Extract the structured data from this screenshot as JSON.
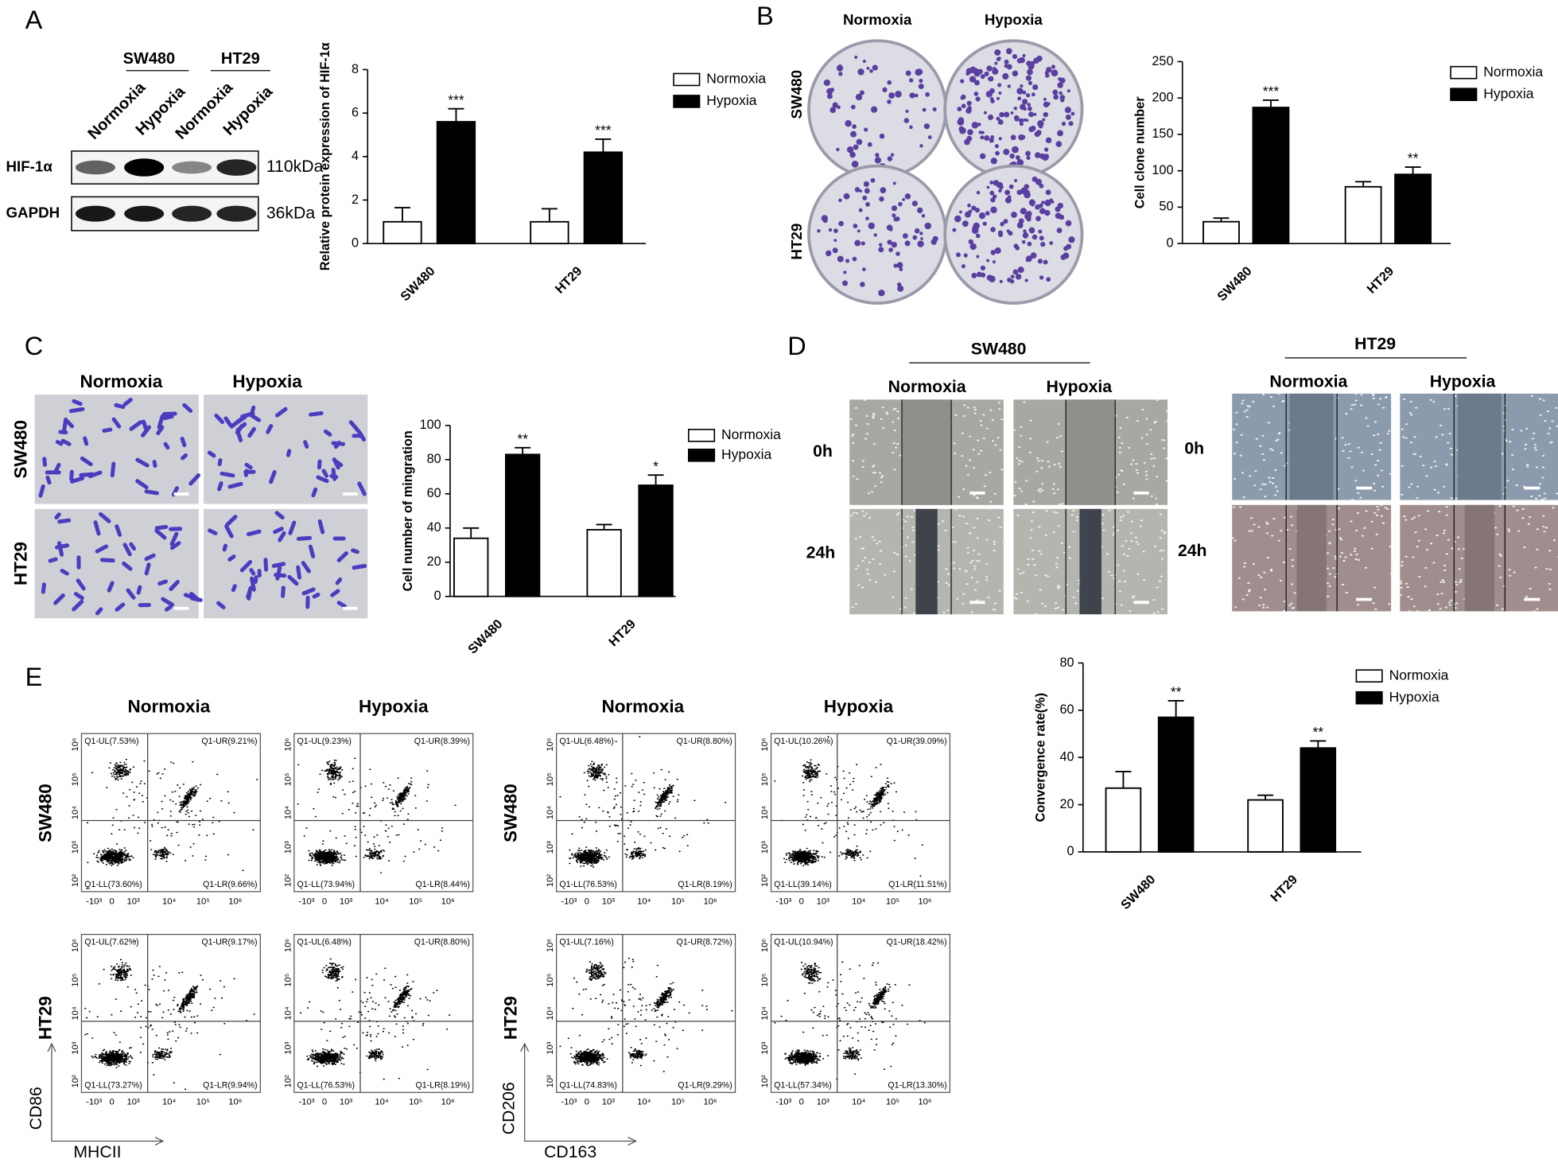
{
  "panel_labels": [
    "A",
    "B",
    "C",
    "D",
    "E"
  ],
  "blot": {
    "cell_lines": [
      "SW480",
      "HT29"
    ],
    "lanes": [
      "Normoxia",
      "Hypoxia",
      "Normoxia",
      "Hypoxia"
    ],
    "proteins": [
      "HIF-1α",
      "GAPDH"
    ],
    "sizes": [
      "110kDa",
      "36kDa"
    ]
  },
  "colony": {
    "columns": [
      "Normoxia",
      "Hypoxia"
    ],
    "rows": [
      "SW480",
      "HT29"
    ]
  },
  "transwell": {
    "columns": [
      "Normoxia",
      "Hypoxia"
    ],
    "rows": [
      "SW480",
      "HT29"
    ]
  },
  "wound": {
    "groups": [
      {
        "title": "SW480",
        "columns": [
          "Normoxia",
          "Hypoxia"
        ],
        "rows": [
          "0h",
          "24h"
        ]
      },
      {
        "title": "HT29",
        "columns": [
          "Normoxia",
          "Hypoxia"
        ],
        "rows": [
          "0h",
          "24h"
        ]
      }
    ]
  },
  "flow": {
    "columns": [
      "Normoxia",
      "Hypoxia",
      "Normoxia",
      "Hypoxia"
    ],
    "rows": [
      "SW480",
      "HT29"
    ],
    "axes": [
      {
        "y": "CD86",
        "x": "MHCII"
      },
      {
        "y": "CD206",
        "x": "CD163"
      }
    ],
    "xticks": [
      "-10³",
      "0",
      "10³",
      "10⁴",
      "10⁵",
      "10⁶"
    ],
    "yticks": [
      "10²",
      "10³",
      "10⁴",
      "10⁵",
      "10⁶"
    ],
    "plots": [
      {
        "UL": "Q1-UL(7.53%)",
        "UR": "Q1-UR(9.21%)",
        "LL": "Q1-LL(73.60%)",
        "LR": "Q1-LR(9.66%)"
      },
      {
        "UL": "Q1-UL(9.23%)",
        "UR": "Q1-UR(8.39%)",
        "LL": "Q1-LL(73.94%)",
        "LR": "Q1-LR(8.44%)"
      },
      {
        "UL": "Q1-UL(6.48%)",
        "UR": "Q1-UR(8.80%)",
        "LL": "Q1-LL(76.53%)",
        "LR": "Q1-LR(8.19%)"
      },
      {
        "UL": "Q1-UL(10.26%)",
        "UR": "Q1-UR(39.09%)",
        "LL": "Q1-LL(39.14%)",
        "LR": "Q1-LR(11.51%)"
      },
      {
        "UL": "Q1-UL(7.62%)",
        "UR": "Q1-UR(9.17%)",
        "LL": "Q1-LL(73.27%)",
        "LR": "Q1-LR(9.94%)"
      },
      {
        "UL": "Q1-UL(6.48%)",
        "UR": "Q1-UR(8.80%)",
        "LL": "Q1-LL(76.53%)",
        "LR": "Q1-LR(8.19%)"
      },
      {
        "UL": "Q1-UL(7.16%)",
        "UR": "Q1-UR(8.72%)",
        "LL": "Q1-LL(74.83%)",
        "LR": "Q1-LR(9.29%)"
      },
      {
        "UL": "Q1-UL(10.94%)",
        "UR": "Q1-UR(18.42%)",
        "LL": "Q1-LL(57.34%)",
        "LR": "Q1-LR(13.30%)"
      }
    ]
  },
  "chart_data": [
    {
      "type": "bar",
      "y_label": "Relative protein expression of HIF-1α",
      "categories": [
        "SW480",
        "HT29"
      ],
      "ylim": [
        0,
        8
      ],
      "yticks": [
        0,
        2,
        4,
        6,
        8
      ],
      "series": [
        {
          "name": "Normoxia",
          "color": "#ffffff",
          "values": [
            1.0,
            1.0
          ],
          "errors": [
            0.65,
            0.6
          ]
        },
        {
          "name": "Hypoxia",
          "color": "#000000",
          "values": [
            5.6,
            4.2
          ],
          "errors": [
            0.6,
            0.6
          ],
          "annotations": [
            "***",
            "***"
          ]
        }
      ]
    },
    {
      "type": "bar",
      "y_label": "Cell clone number",
      "categories": [
        "SW480",
        "HT29"
      ],
      "ylim": [
        0,
        250
      ],
      "yticks": [
        0,
        50,
        100,
        150,
        200,
        250
      ],
      "series": [
        {
          "name": "Normoxia",
          "color": "#ffffff",
          "values": [
            30,
            78
          ],
          "errors": [
            5,
            7
          ]
        },
        {
          "name": "Hypoxia",
          "color": "#000000",
          "values": [
            187,
            95
          ],
          "errors": [
            10,
            10
          ],
          "annotations": [
            "***",
            "**"
          ]
        }
      ]
    },
    {
      "type": "bar",
      "y_label": "Cell number of mingration",
      "categories": [
        "SW480",
        "HT29"
      ],
      "ylim": [
        0,
        100
      ],
      "yticks": [
        0,
        20,
        40,
        60,
        80,
        100
      ],
      "series": [
        {
          "name": "Normoxia",
          "color": "#ffffff",
          "values": [
            34,
            39
          ],
          "errors": [
            6,
            3
          ]
        },
        {
          "name": "Hypoxia",
          "color": "#000000",
          "values": [
            83,
            65
          ],
          "errors": [
            4,
            6
          ],
          "annotations": [
            "**",
            "*"
          ]
        }
      ]
    },
    {
      "type": "bar",
      "y_label": "Convergence rate(%)",
      "categories": [
        "SW480",
        "HT29"
      ],
      "ylim": [
        0,
        80
      ],
      "yticks": [
        0,
        20,
        40,
        60,
        80
      ],
      "series": [
        {
          "name": "Normoxia",
          "color": "#ffffff",
          "values": [
            27,
            22
          ],
          "errors": [
            7,
            2
          ]
        },
        {
          "name": "Hypoxia",
          "color": "#000000",
          "values": [
            57,
            44
          ],
          "errors": [
            7,
            3
          ],
          "annotations": [
            "**",
            "**"
          ]
        }
      ]
    }
  ]
}
